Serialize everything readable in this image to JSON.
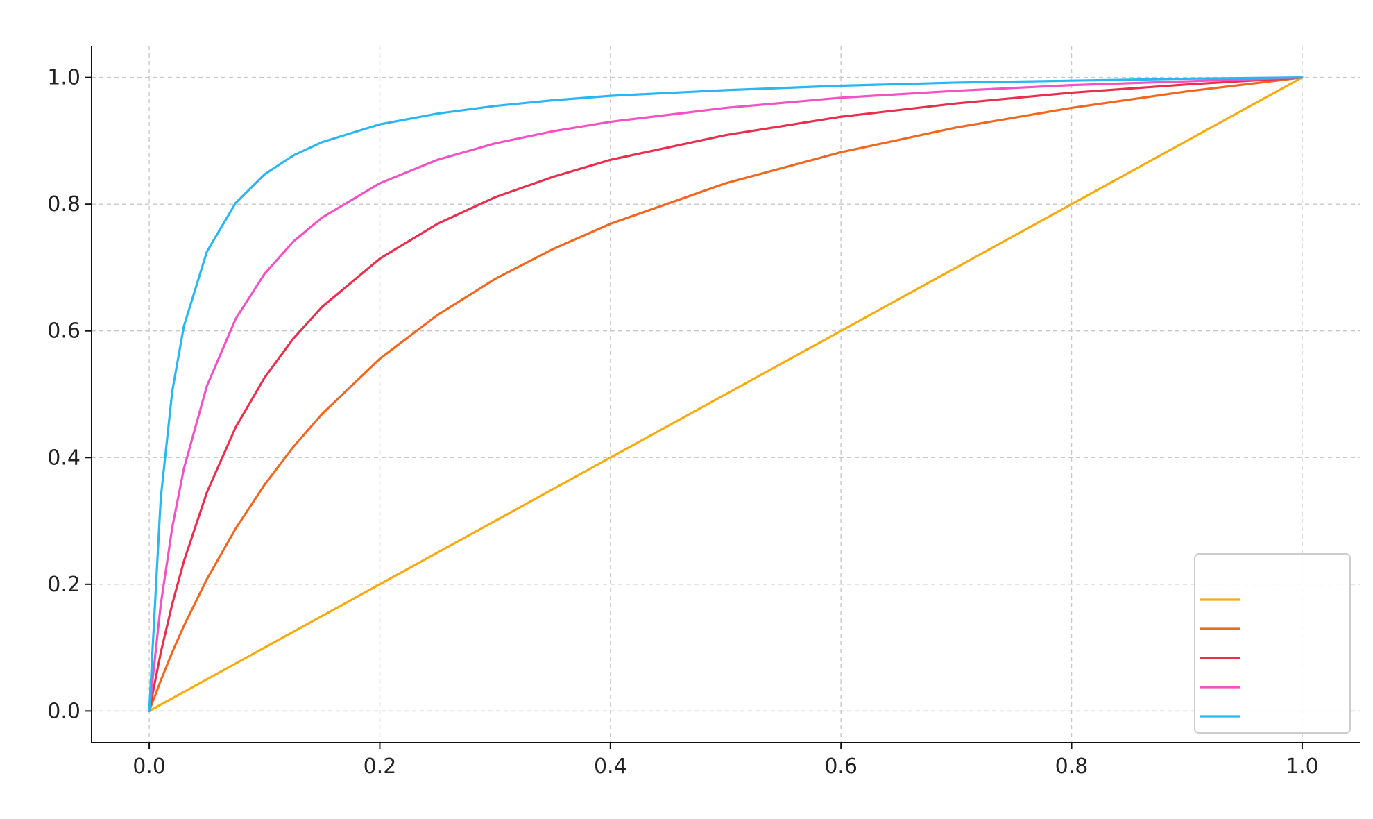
{
  "chart_data": {
    "type": "line",
    "title": "",
    "xlabel": "",
    "ylabel": "",
    "xlim": [
      -0.05,
      1.05
    ],
    "ylim": [
      -0.05,
      1.05
    ],
    "x_ticks": [
      "0.0",
      "0.2",
      "0.4",
      "0.6",
      "0.8",
      "1.0"
    ],
    "y_ticks": [
      "0.0",
      "0.2",
      "0.4",
      "0.6",
      "0.8",
      "1.0"
    ],
    "grid": true,
    "legend": {
      "title": "",
      "placement": "lower-right"
    },
    "x": [
      0.0,
      0.01,
      0.02,
      0.03,
      0.05,
      0.075,
      0.1,
      0.125,
      0.15,
      0.2,
      0.25,
      0.3,
      0.35,
      0.4,
      0.5,
      0.6,
      0.7,
      0.8,
      0.9,
      1.0
    ],
    "series": [
      {
        "name": "",
        "color": "#f5ab0f",
        "values": [
          0.0,
          0.01,
          0.02,
          0.03,
          0.05,
          0.075,
          0.1,
          0.125,
          0.15,
          0.2,
          0.25,
          0.3,
          0.35,
          0.4,
          0.5,
          0.6,
          0.7,
          0.8,
          0.9,
          1.0
        ]
      },
      {
        "name": "",
        "color": "#f06820",
        "values": [
          0.0,
          0.048,
          0.093,
          0.134,
          0.208,
          0.288,
          0.357,
          0.417,
          0.469,
          0.556,
          0.625,
          0.682,
          0.729,
          0.769,
          0.833,
          0.882,
          0.921,
          0.952,
          0.978,
          1.0
        ]
      },
      {
        "name": "",
        "color": "#e6304e",
        "values": [
          0.0,
          0.092,
          0.169,
          0.236,
          0.345,
          0.448,
          0.526,
          0.588,
          0.638,
          0.714,
          0.769,
          0.811,
          0.843,
          0.87,
          0.909,
          0.938,
          0.959,
          0.976,
          0.989,
          1.0
        ]
      },
      {
        "name": "",
        "color": "#f252c2",
        "values": [
          0.0,
          0.168,
          0.29,
          0.382,
          0.513,
          0.619,
          0.69,
          0.741,
          0.779,
          0.833,
          0.87,
          0.896,
          0.915,
          0.93,
          0.952,
          0.968,
          0.979,
          0.988,
          0.994,
          1.0
        ]
      },
      {
        "name": "",
        "color": "#2ab6f0",
        "values": [
          0.0,
          0.336,
          0.505,
          0.607,
          0.725,
          0.802,
          0.847,
          0.877,
          0.898,
          0.926,
          0.943,
          0.955,
          0.964,
          0.971,
          0.98,
          0.987,
          0.992,
          0.995,
          0.998,
          1.0
        ]
      }
    ]
  }
}
